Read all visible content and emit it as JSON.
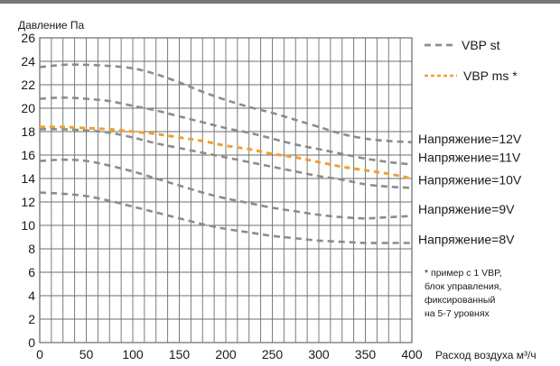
{
  "chart_data": {
    "type": "line",
    "ylabel": "Давление Па",
    "xlabel": "Расход воздуха м³/ч",
    "xlim": [
      0,
      400
    ],
    "ylim": [
      0,
      26
    ],
    "x_ticks": [
      0,
      50,
      100,
      150,
      200,
      250,
      300,
      350,
      400
    ],
    "y_ticks": [
      0,
      2,
      4,
      6,
      8,
      10,
      12,
      14,
      16,
      18,
      20,
      22,
      24,
      26
    ],
    "grid": true,
    "legend_placement": "top-right",
    "legend": [
      {
        "label": "VBP st",
        "color": "#8c8c8c"
      },
      {
        "label": "VBP ms *",
        "color": "#f0a030"
      }
    ],
    "series": [
      {
        "kind": "st",
        "curve_label": "Напряжение=12V",
        "color": "#8c8c8c",
        "x": [
          0,
          25,
          50,
          75,
          100,
          125,
          150,
          175,
          200,
          225,
          250,
          275,
          300,
          325,
          350,
          375,
          400
        ],
        "y": [
          23.5,
          23.7,
          23.7,
          23.6,
          23.4,
          22.9,
          22.2,
          21.4,
          20.7,
          20.1,
          19.6,
          19.0,
          18.4,
          17.8,
          17.4,
          17.2,
          17.1
        ]
      },
      {
        "kind": "st",
        "curve_label": "Напряжение=11V",
        "color": "#8c8c8c",
        "x": [
          0,
          25,
          50,
          75,
          100,
          125,
          150,
          175,
          200,
          225,
          250,
          275,
          300,
          325,
          350,
          375,
          400
        ],
        "y": [
          20.8,
          20.9,
          20.8,
          20.6,
          20.2,
          19.8,
          19.3,
          18.8,
          18.3,
          17.9,
          17.4,
          16.9,
          16.5,
          16.1,
          15.7,
          15.4,
          15.2
        ]
      },
      {
        "kind": "ms",
        "curve_label": "",
        "color": "#f0a030",
        "x": [
          0,
          25,
          50,
          75,
          100,
          125,
          150,
          175,
          200,
          225,
          250,
          275,
          300,
          325,
          350,
          375,
          400
        ],
        "y": [
          18.4,
          18.4,
          18.3,
          18.2,
          18.0,
          17.8,
          17.5,
          17.2,
          16.8,
          16.5,
          16.1,
          15.8,
          15.4,
          15.0,
          14.7,
          14.4,
          14.0
        ]
      },
      {
        "kind": "st",
        "curve_label": "Напряжение=10V",
        "color": "#8c8c8c",
        "x": [
          0,
          25,
          50,
          75,
          100,
          125,
          150,
          175,
          200,
          225,
          250,
          275,
          300,
          325,
          350,
          375,
          400
        ],
        "y": [
          18.2,
          18.2,
          18.1,
          17.9,
          17.5,
          17.0,
          16.6,
          16.2,
          15.8,
          15.4,
          15.0,
          14.6,
          14.2,
          13.9,
          13.5,
          13.3,
          13.2
        ]
      },
      {
        "kind": "st",
        "curve_label": "Напряжение=9V",
        "color": "#8c8c8c",
        "x": [
          0,
          25,
          50,
          75,
          100,
          125,
          150,
          175,
          200,
          225,
          250,
          275,
          300,
          325,
          350,
          375,
          400
        ],
        "y": [
          15.5,
          15.6,
          15.5,
          15.1,
          14.6,
          14.0,
          13.4,
          12.8,
          12.3,
          11.9,
          11.5,
          11.2,
          10.9,
          10.7,
          10.6,
          10.7,
          10.8
        ]
      },
      {
        "kind": "st",
        "curve_label": "Напряжение=8V",
        "color": "#8c8c8c",
        "x": [
          0,
          25,
          50,
          75,
          100,
          125,
          150,
          175,
          200,
          225,
          250,
          275,
          300,
          325,
          350,
          375,
          400
        ],
        "y": [
          12.8,
          12.7,
          12.5,
          12.1,
          11.6,
          11.1,
          10.6,
          10.1,
          9.7,
          9.4,
          9.1,
          8.9,
          8.7,
          8.6,
          8.5,
          8.5,
          8.5
        ]
      }
    ],
    "curve_labels": [
      {
        "text": "Напряжение=12V",
        "at_y": 17.4
      },
      {
        "text": "Напряжение=11V",
        "at_y": 15.8
      },
      {
        "text": "Напряжение=10V",
        "at_y": 13.9
      },
      {
        "text": "Напряжение=9V",
        "at_y": 11.4
      },
      {
        "text": "Напряжение=8V",
        "at_y": 8.8
      }
    ],
    "footnote": [
      "* пример с 1 VBP,",
      "блок управления,",
      "фиксированный",
      "на 5-7 уровнях"
    ]
  }
}
